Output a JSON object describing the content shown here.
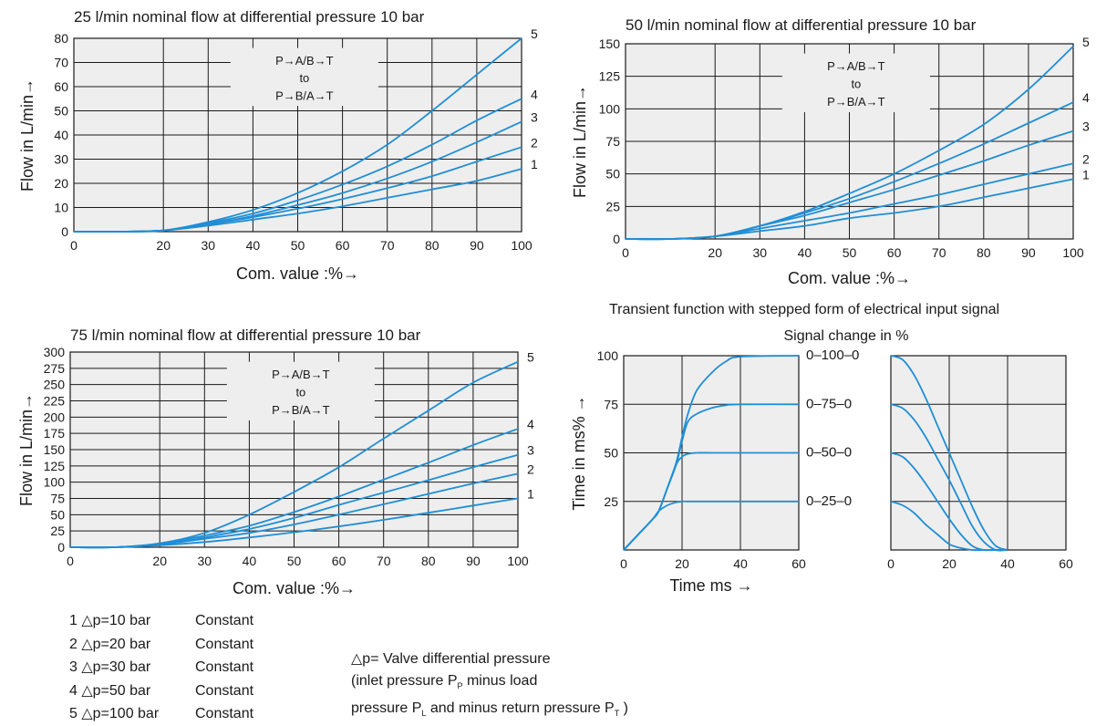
{
  "chart_data": [
    {
      "id": "c25",
      "type": "line",
      "title": "25 l/min nominal flow at differential pressure 10 bar",
      "xlabel": "Com. value :%→",
      "ylabel": "Flow in L/min→",
      "xlim": [
        0,
        100
      ],
      "ylim": [
        0,
        80
      ],
      "x_ticks": [
        0,
        20,
        30,
        40,
        50,
        60,
        70,
        80,
        90,
        100
      ],
      "y_ticks": [
        0,
        10,
        20,
        30,
        40,
        50,
        60,
        70,
        80
      ],
      "grid": true,
      "annotation": [
        "P→A/B→T",
        "to",
        "P→B/A→T"
      ],
      "x": [
        0,
        10,
        20,
        30,
        40,
        50,
        60,
        70,
        80,
        90,
        100
      ],
      "series": [
        {
          "name": "1",
          "values": [
            0,
            0,
            0.5,
            2.5,
            5,
            7.5,
            10.5,
            14,
            17.5,
            21,
            26
          ]
        },
        {
          "name": "2",
          "values": [
            0,
            0,
            0.5,
            3,
            6,
            9.5,
            13.5,
            18,
            23,
            29,
            35
          ]
        },
        {
          "name": "3",
          "values": [
            0,
            0,
            0.5,
            3,
            6.5,
            11,
            16,
            22,
            29,
            37,
            45.5
          ]
        },
        {
          "name": "4",
          "values": [
            0,
            0,
            0.5,
            3.5,
            7.5,
            13,
            19.5,
            27,
            36,
            46,
            55
          ]
        },
        {
          "name": "5",
          "values": [
            0,
            0,
            0.5,
            4,
            9,
            16,
            25,
            36,
            50,
            65,
            80
          ]
        }
      ]
    },
    {
      "id": "c50",
      "type": "line",
      "title": "50 l/min nominal flow at differential pressure 10 bar",
      "xlabel": "Com. value :%→",
      "ylabel": "Flow in L/min→",
      "xlim": [
        0,
        100
      ],
      "ylim": [
        0,
        150
      ],
      "x_ticks": [
        0,
        20,
        30,
        40,
        50,
        60,
        70,
        80,
        90,
        100
      ],
      "y_ticks": [
        0,
        25,
        50,
        75,
        100,
        125,
        150
      ],
      "grid": true,
      "annotation": [
        "P→A/B→T",
        "to",
        "P→B/A→T"
      ],
      "x": [
        0,
        10,
        20,
        30,
        40,
        50,
        60,
        70,
        80,
        90,
        100
      ],
      "series": [
        {
          "name": "1",
          "values": [
            0,
            0,
            2,
            6,
            10,
            16,
            20,
            25,
            32,
            39,
            46
          ]
        },
        {
          "name": "2",
          "values": [
            0,
            0,
            2,
            8,
            14,
            20,
            27,
            34,
            42,
            50,
            58
          ]
        },
        {
          "name": "3",
          "values": [
            0,
            0,
            2,
            10,
            18,
            28,
            38,
            49,
            60,
            72,
            83
          ]
        },
        {
          "name": "4",
          "values": [
            0,
            0,
            2,
            10,
            20,
            31,
            44,
            58,
            73,
            89,
            105
          ]
        },
        {
          "name": "5",
          "values": [
            0,
            0,
            2,
            10,
            21,
            35,
            50,
            68,
            88,
            115,
            148
          ]
        }
      ]
    },
    {
      "id": "c75",
      "type": "line",
      "title": "75 l/min nominal flow at differential pressure 10 bar",
      "xlabel": "Com. value :%→",
      "ylabel": "Flow in L/min→",
      "xlim": [
        0,
        100
      ],
      "ylim": [
        0,
        300
      ],
      "x_ticks": [
        0,
        20,
        30,
        40,
        50,
        60,
        70,
        80,
        90,
        100
      ],
      "y_ticks": [
        0,
        25,
        50,
        75,
        100,
        125,
        150,
        175,
        200,
        225,
        250,
        275,
        300
      ],
      "grid": true,
      "annotation": [
        "P→A/B→T",
        "to",
        "P→B/A→T"
      ],
      "x": [
        0,
        10,
        20,
        30,
        40,
        50,
        60,
        70,
        80,
        90,
        100
      ],
      "series": [
        {
          "name": "1",
          "values": [
            0,
            0,
            3,
            8,
            15,
            23,
            32,
            42,
            53,
            64,
            75
          ]
        },
        {
          "name": "2",
          "values": [
            0,
            0,
            4,
            13,
            22,
            35,
            50,
            66,
            82,
            98,
            113
          ]
        },
        {
          "name": "3",
          "values": [
            0,
            0,
            4,
            15,
            28,
            45,
            65,
            84,
            103,
            123,
            142
          ]
        },
        {
          "name": "4",
          "values": [
            0,
            0,
            5,
            18,
            33,
            54,
            78,
            104,
            130,
            157,
            182
          ]
        },
        {
          "name": "5",
          "values": [
            0,
            0,
            6,
            22,
            50,
            85,
            123,
            167,
            210,
            253,
            285
          ]
        }
      ]
    },
    {
      "id": "step_up",
      "type": "line",
      "title": "Transient function with stepped form of electrical input signal",
      "subtitle": "Signal change in %",
      "xlabel": "Time ms →",
      "ylabel": "Time in ms% →",
      "xlim": [
        0,
        60
      ],
      "ylim": [
        0,
        100
      ],
      "x_ticks": [
        0,
        20,
        40,
        60
      ],
      "y_ticks": [
        25,
        50,
        75,
        100
      ],
      "grid": true,
      "x": [
        0,
        5,
        10,
        12,
        15,
        18,
        20,
        22,
        25,
        30,
        35,
        40,
        60
      ],
      "series": [
        {
          "name": "0–100–0",
          "values": [
            0,
            8,
            16,
            20,
            32,
            45,
            58,
            70,
            82,
            91,
            97,
            99.5,
            100
          ]
        },
        {
          "name": "0–75–0",
          "values": [
            0,
            8,
            16,
            20,
            32,
            44,
            56,
            66,
            70,
            73,
            74.5,
            75,
            75
          ]
        },
        {
          "name": "0–50–0",
          "values": [
            0,
            8,
            16,
            20,
            32,
            44,
            48,
            49.5,
            50,
            50,
            50,
            50,
            50
          ]
        },
        {
          "name": "0–25–0",
          "values": [
            0,
            8,
            16,
            20,
            23,
            24.5,
            25,
            25,
            25,
            25,
            25,
            25,
            25
          ]
        }
      ]
    },
    {
      "id": "step_down",
      "type": "line",
      "xlim": [
        0,
        60
      ],
      "ylim": [
        0,
        100
      ],
      "x_ticks": [
        0,
        20,
        40,
        60
      ],
      "grid": true,
      "x": [
        0,
        4,
        8,
        12,
        16,
        20,
        24,
        28,
        32,
        36,
        40
      ],
      "series": [
        {
          "values": [
            100,
            98,
            90,
            78,
            64,
            50,
            36,
            22,
            10,
            2,
            0
          ]
        },
        {
          "values": [
            75,
            73,
            67,
            58,
            47,
            36,
            24,
            12,
            4,
            0,
            0
          ]
        },
        {
          "values": [
            50,
            48,
            42,
            34,
            25,
            16,
            8,
            2,
            0,
            0,
            0
          ]
        },
        {
          "values": [
            25,
            23,
            19,
            13,
            8,
            3,
            1,
            0,
            0,
            0,
            0
          ]
        }
      ]
    }
  ],
  "colors": {
    "curve": "#1f8ed6",
    "grid": "#1a1a1a",
    "plot_bg": "#eeeeee"
  },
  "legend_items": [
    {
      "label": "1 △p=10 bar",
      "state": "Constant"
    },
    {
      "label": "2 △p=20 bar",
      "state": "Constant"
    },
    {
      "label": "3 △p=30 bar",
      "state": "Constant"
    },
    {
      "label": "4 △p=50 bar",
      "state": "Constant"
    },
    {
      "label": "5 △p=100 bar",
      "state": "Constant"
    }
  ],
  "note": {
    "line1": "△p= Valve differential pressure",
    "line2_pre": "(inlet pressure P",
    "line2_sub": "P",
    "line2_post": "  minus load",
    "line3_pre": "pressure P",
    "line3_sub1": "L",
    "line3_mid": " and minus return pressure P",
    "line3_sub2": "T",
    "line3_post": " )"
  }
}
